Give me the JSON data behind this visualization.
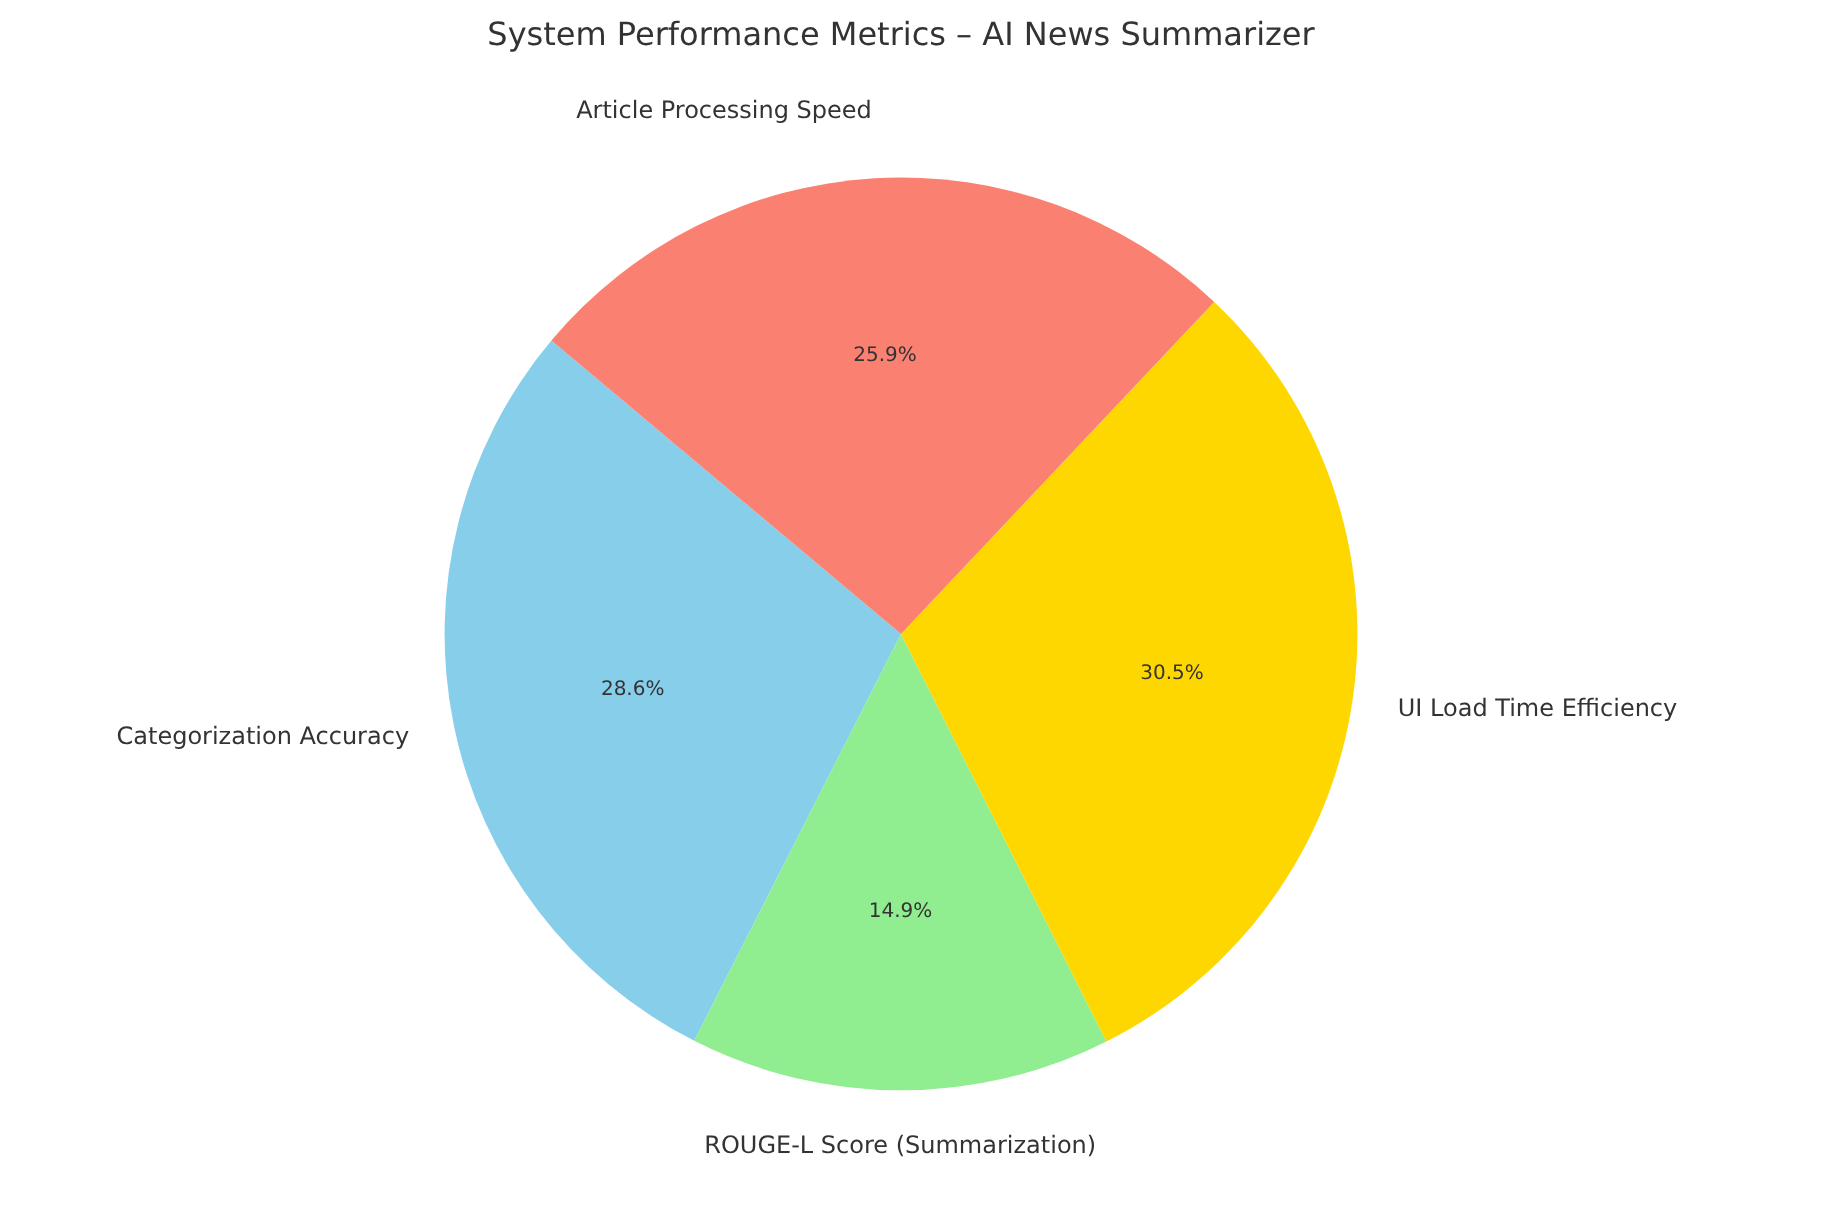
{
  "chart_data": {
    "type": "pie",
    "title": "System Performance Metrics – AI News Summarizer",
    "categories": [
      "Categorization Accuracy",
      "ROUGE-L Score (Summarization)",
      "UI Load Time Efficiency",
      "Article Processing Speed"
    ],
    "values": [
      28.6,
      14.9,
      30.5,
      25.9
    ],
    "colors": [
      "#87ceeb",
      "#90ee90",
      "#ffd700",
      "#fa8072"
    ],
    "value_labels": [
      "28.6%",
      "14.9%",
      "30.5%",
      "25.9%"
    ]
  }
}
